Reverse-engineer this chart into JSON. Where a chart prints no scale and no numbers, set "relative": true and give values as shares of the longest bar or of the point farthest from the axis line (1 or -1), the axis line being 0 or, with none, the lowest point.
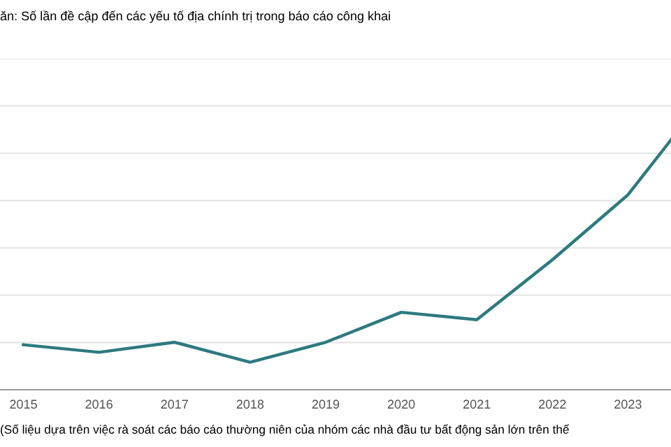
{
  "chart_data": {
    "type": "line",
    "title": "ăn: Số lần đề cập đến các yếu tố địa chính trị trong báo cáo công khai",
    "annotations": [
      "(Số liệu dựa trên việc rà soát các báo cáo thường niên của nhóm các nhà đầu tư bất động sản lớn trên thế"
    ],
    "x": [
      2015,
      2016,
      2017,
      2018,
      2019,
      2020,
      2021,
      2022,
      2023,
      2023.57
    ],
    "series": [
      {
        "color": "#2e7a80",
        "values": [
          0.18,
          0.15,
          0.19,
          0.11,
          0.19,
          0.31,
          0.28,
          0.52,
          0.78,
          1
        ]
      }
    ],
    "relative": true,
    "xlim": [
      2014.69,
      2023.57
    ],
    "xticks": [
      2015,
      2016,
      2017,
      2018,
      2019,
      2020,
      2021,
      2022,
      2023
    ],
    "grid": "y",
    "marker": "none",
    "line_style": "solid"
  }
}
